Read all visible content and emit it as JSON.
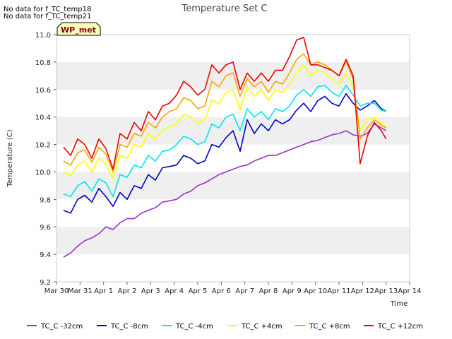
{
  "notes": [
    "No data for f_TC_temp18",
    "No data for f_TC_temp21"
  ],
  "badge": "WP_met",
  "chart_data": {
    "type": "line",
    "title": "Temperature Set C",
    "xlabel": "Time",
    "ylabel": "Temperature (C)",
    "ylim": [
      9.2,
      11.0
    ],
    "yticks": [
      "9.2",
      "9.4",
      "9.6",
      "9.8",
      "10.0",
      "10.2",
      "10.4",
      "10.6",
      "10.8",
      "11.0"
    ],
    "xlim": [
      0,
      15
    ],
    "xticks": [
      "Mar 30",
      "Mar 31",
      "Apr 1",
      "Apr 2",
      "Apr 3",
      "Apr 4",
      "Apr 5",
      "Apr 6",
      "Apr 7",
      "Apr 8",
      "Apr 9",
      "Apr 10",
      "Apr 11",
      "Apr 12",
      "Apr 13",
      "Apr 14"
    ],
    "grid": "horizontal bands",
    "legend_position": "bottom",
    "x": [
      0.3,
      0.6,
      0.9,
      1.2,
      1.5,
      1.8,
      2.1,
      2.4,
      2.7,
      3.0,
      3.3,
      3.6,
      3.9,
      4.2,
      4.5,
      4.8,
      5.1,
      5.4,
      5.7,
      6.0,
      6.3,
      6.6,
      6.9,
      7.2,
      7.5,
      7.8,
      8.1,
      8.4,
      8.7,
      9.0,
      9.3,
      9.6,
      9.9,
      10.2,
      10.5,
      10.8,
      11.1,
      11.4,
      11.7,
      12.0,
      12.3,
      12.6,
      12.9,
      13.2,
      13.5,
      13.8,
      14.0
    ],
    "series": [
      {
        "name": "TC_C -32cm",
        "color": "#9932cc",
        "values": [
          9.38,
          9.41,
          9.46,
          9.5,
          9.52,
          9.55,
          9.6,
          9.58,
          9.63,
          9.66,
          9.66,
          9.7,
          9.72,
          9.74,
          9.78,
          9.79,
          9.8,
          9.84,
          9.86,
          9.9,
          9.92,
          9.95,
          9.98,
          10.0,
          10.02,
          10.04,
          10.05,
          10.08,
          10.1,
          10.12,
          10.12,
          10.14,
          10.16,
          10.18,
          10.2,
          10.22,
          10.23,
          10.25,
          10.27,
          10.28,
          10.3,
          10.27,
          10.26,
          10.28,
          10.35,
          10.32,
          10.3
        ]
      },
      {
        "name": "TC_C -8cm",
        "color": "#0000cc",
        "values": [
          9.72,
          9.7,
          9.8,
          9.83,
          9.78,
          9.88,
          9.82,
          9.75,
          9.85,
          9.8,
          9.9,
          9.88,
          9.98,
          9.94,
          10.03,
          10.04,
          10.05,
          10.12,
          10.1,
          10.06,
          10.08,
          10.2,
          10.18,
          10.25,
          10.3,
          10.15,
          10.38,
          10.28,
          10.35,
          10.3,
          10.38,
          10.35,
          10.38,
          10.45,
          10.5,
          10.44,
          10.52,
          10.55,
          10.5,
          10.48,
          10.57,
          10.5,
          10.45,
          10.48,
          10.52,
          10.46,
          10.44
        ]
      },
      {
        "name": "TC_C -4cm",
        "color": "#00e5ee",
        "values": [
          9.84,
          9.82,
          9.9,
          9.93,
          9.86,
          9.95,
          9.92,
          9.82,
          9.98,
          9.96,
          10.05,
          10.03,
          10.12,
          10.08,
          10.15,
          10.16,
          10.2,
          10.26,
          10.24,
          10.2,
          10.22,
          10.35,
          10.32,
          10.4,
          10.42,
          10.3,
          10.46,
          10.4,
          10.44,
          10.38,
          10.46,
          10.44,
          10.48,
          10.56,
          10.6,
          10.55,
          10.62,
          10.63,
          10.58,
          10.55,
          10.63,
          10.56,
          10.48,
          10.5,
          10.5,
          10.45,
          10.44
        ]
      },
      {
        "name": "TC_C +4cm",
        "color": "#ffff00",
        "values": [
          10.0,
          9.97,
          10.05,
          10.08,
          10.0,
          10.1,
          10.06,
          9.95,
          10.12,
          10.1,
          10.2,
          10.18,
          10.28,
          10.24,
          10.3,
          10.33,
          10.35,
          10.42,
          10.4,
          10.35,
          10.38,
          10.52,
          10.5,
          10.58,
          10.6,
          10.45,
          10.62,
          10.55,
          10.6,
          10.52,
          10.6,
          10.58,
          10.64,
          10.72,
          10.78,
          10.7,
          10.74,
          10.72,
          10.68,
          10.64,
          10.72,
          10.62,
          10.3,
          10.38,
          10.4,
          10.35,
          10.33
        ]
      },
      {
        "name": "TC_C +8cm",
        "color": "#ffa500",
        "values": [
          10.08,
          10.05,
          10.14,
          10.16,
          10.07,
          10.18,
          10.13,
          10.0,
          10.2,
          10.18,
          10.28,
          10.26,
          10.36,
          10.32,
          10.4,
          10.44,
          10.46,
          10.54,
          10.52,
          10.46,
          10.48,
          10.66,
          10.62,
          10.7,
          10.72,
          10.55,
          10.68,
          10.62,
          10.66,
          10.58,
          10.66,
          10.64,
          10.72,
          10.82,
          10.86,
          10.78,
          10.8,
          10.78,
          10.74,
          10.7,
          10.8,
          10.68,
          10.24,
          10.32,
          10.38,
          10.34,
          10.32
        ]
      },
      {
        "name": "TC_C +12cm",
        "color": "#ee0000",
        "values": [
          10.18,
          10.12,
          10.24,
          10.2,
          10.1,
          10.24,
          10.17,
          10.02,
          10.28,
          10.24,
          10.36,
          10.3,
          10.44,
          10.38,
          10.48,
          10.5,
          10.56,
          10.66,
          10.62,
          10.56,
          10.6,
          10.78,
          10.72,
          10.78,
          10.8,
          10.6,
          10.72,
          10.66,
          10.72,
          10.66,
          10.74,
          10.74,
          10.84,
          10.96,
          10.98,
          10.78,
          10.78,
          10.76,
          10.74,
          10.7,
          10.82,
          10.7,
          10.06,
          10.26,
          10.36,
          10.3,
          10.24
        ]
      }
    ]
  }
}
